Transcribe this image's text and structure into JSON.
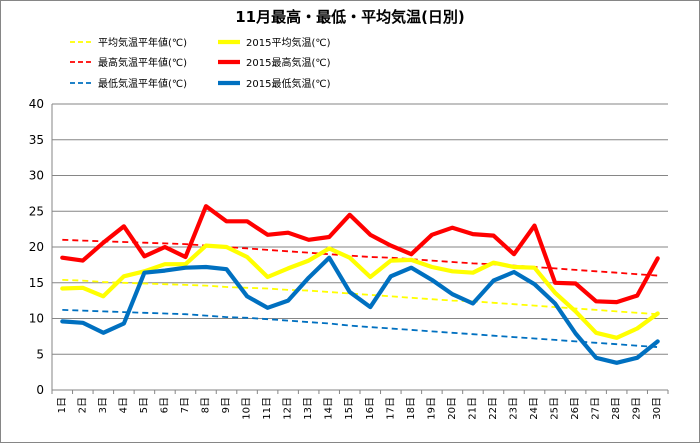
{
  "chart_data": {
    "type": "line",
    "title": "11月最高・最低・平均気温(日別)",
    "xlabel": "",
    "ylabel": "",
    "ylim": [
      0,
      40
    ],
    "yticks": [
      0,
      5,
      10,
      15,
      20,
      25,
      30,
      35,
      40
    ],
    "categories": [
      "1日",
      "2日",
      "3日",
      "4日",
      "5日",
      "6日",
      "7日",
      "8日",
      "9日",
      "10日",
      "11日",
      "12日",
      "13日",
      "14日",
      "15日",
      "16日",
      "17日",
      "18日",
      "19日",
      "20日",
      "21日",
      "22日",
      "23日",
      "24日",
      "25日",
      "26日",
      "27日",
      "28日",
      "29日",
      "30日"
    ],
    "grid": true,
    "legend_position": "top",
    "series": [
      {
        "name": "平均気温平年値(℃)",
        "color": "#ffff00",
        "style": "dashed",
        "values": [
          15.4,
          15.3,
          15.1,
          15.0,
          14.9,
          14.8,
          14.7,
          14.6,
          14.4,
          14.3,
          14.2,
          14.0,
          13.9,
          13.7,
          13.5,
          13.3,
          13.1,
          12.9,
          12.7,
          12.5,
          12.4,
          12.2,
          12.0,
          11.8,
          11.6,
          11.4,
          11.2,
          11.0,
          10.8,
          10.6
        ]
      },
      {
        "name": "2015平均気温(℃)",
        "color": "#ffff00",
        "style": "solid",
        "values": [
          14.2,
          14.3,
          13.1,
          15.9,
          16.6,
          17.6,
          17.6,
          20.2,
          20.0,
          18.6,
          15.8,
          17.0,
          18.1,
          19.8,
          18.5,
          15.8,
          18.1,
          18.2,
          17.2,
          16.6,
          16.4,
          17.8,
          17.2,
          17.1,
          13.6,
          11.0,
          8.0,
          7.3,
          8.6,
          10.7
        ]
      },
      {
        "name": "最高気温平年値(℃)",
        "color": "#ff0000",
        "style": "dashed",
        "values": [
          21.0,
          20.9,
          20.8,
          20.7,
          20.6,
          20.5,
          20.4,
          20.2,
          20.0,
          19.8,
          19.6,
          19.4,
          19.2,
          19.0,
          18.8,
          18.6,
          18.5,
          18.3,
          18.1,
          17.9,
          17.7,
          17.6,
          17.4,
          17.2,
          17.0,
          16.8,
          16.6,
          16.4,
          16.2,
          16.0
        ]
      },
      {
        "name": "2015最高気温(℃)",
        "color": "#ff0000",
        "style": "solid",
        "values": [
          18.5,
          18.1,
          20.6,
          22.9,
          18.7,
          20.0,
          18.6,
          25.7,
          23.6,
          23.6,
          21.7,
          22.0,
          21.0,
          21.4,
          24.5,
          21.7,
          20.2,
          19.0,
          21.7,
          22.7,
          21.8,
          21.6,
          19.0,
          23.0,
          15.0,
          14.9,
          12.4,
          12.3,
          13.2,
          18.4
        ]
      },
      {
        "name": "最低気温平年値(℃)",
        "color": "#0070c0",
        "style": "dashed",
        "values": [
          11.2,
          11.1,
          11.0,
          10.9,
          10.8,
          10.7,
          10.6,
          10.4,
          10.2,
          10.1,
          9.9,
          9.7,
          9.5,
          9.3,
          9.0,
          8.8,
          8.6,
          8.4,
          8.2,
          8.0,
          7.8,
          7.6,
          7.4,
          7.2,
          7.0,
          6.8,
          6.6,
          6.4,
          6.2,
          6.0
        ]
      },
      {
        "name": "2015最低気温(℃)",
        "color": "#0070c0",
        "style": "solid",
        "values": [
          9.6,
          9.4,
          8.0,
          9.3,
          16.4,
          16.7,
          17.1,
          17.2,
          16.9,
          13.1,
          11.5,
          12.5,
          15.7,
          18.5,
          13.7,
          11.6,
          15.9,
          17.1,
          15.4,
          13.4,
          12.1,
          15.3,
          16.5,
          14.8,
          12.1,
          7.9,
          4.5,
          3.8,
          4.5,
          6.8
        ]
      }
    ]
  }
}
